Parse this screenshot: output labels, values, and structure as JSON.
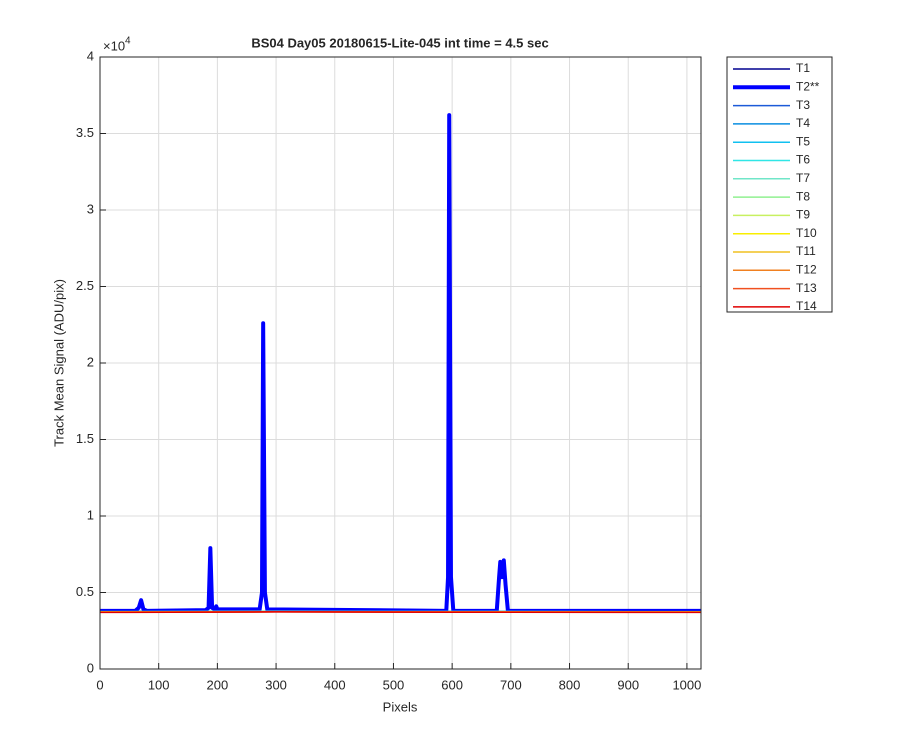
{
  "chart_data": {
    "type": "line",
    "title": "BS04 Day05 20180615-Lite-045 int time = 4.5 sec",
    "xlabel": "Pixels",
    "ylabel": "Track Mean Signal (ADU/pix)",
    "y_multiplier": "×10",
    "y_multiplier_exponent": "4",
    "xlim": [
      0,
      1024
    ],
    "ylim": [
      0,
      4
    ],
    "xticks": [
      0,
      100,
      200,
      300,
      400,
      500,
      600,
      700,
      800,
      900,
      1000
    ],
    "yticks": [
      0,
      0.5,
      1,
      1.5,
      2,
      2.5,
      3,
      3.5,
      4
    ],
    "grid": true,
    "legend": "outside-top-right",
    "series": [
      {
        "name": "T1",
        "color": "#00008f",
        "line_width": 1.5,
        "x": [
          0,
          300,
          600,
          1024
        ],
        "values": [
          0.376,
          0.377,
          0.376,
          0.375
        ]
      },
      {
        "name": "T2**",
        "color": "#0000ff",
        "line_width": 4,
        "x": [
          0,
          60,
          66,
          70,
          74,
          80,
          180,
          185,
          188,
          191,
          196,
          198,
          200,
          272,
          276,
          278,
          281,
          285,
          590,
          593,
          595,
          598,
          602,
          676,
          680,
          682,
          685,
          688,
          691,
          695,
          1024
        ],
        "values": [
          0.38,
          0.38,
          0.4,
          0.45,
          0.39,
          0.38,
          0.385,
          0.4,
          0.79,
          0.4,
          0.39,
          0.41,
          0.39,
          0.39,
          0.5,
          2.26,
          0.5,
          0.39,
          0.38,
          0.6,
          3.62,
          0.6,
          0.38,
          0.38,
          0.6,
          0.7,
          0.6,
          0.71,
          0.55,
          0.38,
          0.38
        ]
      },
      {
        "name": "T3",
        "color": "#1c5ad8",
        "line_width": 1.5,
        "x": [
          0,
          300,
          600,
          1024
        ],
        "values": [
          0.376,
          0.378,
          0.376,
          0.375
        ]
      },
      {
        "name": "T4",
        "color": "#0a8ee0",
        "line_width": 1.5,
        "x": [
          0,
          300,
          600,
          1024
        ],
        "values": [
          0.375,
          0.377,
          0.376,
          0.375
        ]
      },
      {
        "name": "T5",
        "color": "#10c0f0",
        "line_width": 1.5,
        "x": [
          0,
          300,
          600,
          1024
        ],
        "values": [
          0.375,
          0.376,
          0.375,
          0.374
        ]
      },
      {
        "name": "T6",
        "color": "#30e6e6",
        "line_width": 1.5,
        "x": [
          0,
          300,
          600,
          1024
        ],
        "values": [
          0.374,
          0.376,
          0.375,
          0.374
        ]
      },
      {
        "name": "T7",
        "color": "#70e6c8",
        "line_width": 1.5,
        "x": [
          0,
          300,
          600,
          1024
        ],
        "values": [
          0.374,
          0.375,
          0.375,
          0.374
        ]
      },
      {
        "name": "T8",
        "color": "#90f090",
        "line_width": 1.5,
        "x": [
          0,
          300,
          600,
          1024
        ],
        "values": [
          0.374,
          0.375,
          0.374,
          0.373
        ]
      },
      {
        "name": "T9",
        "color": "#c8f060",
        "line_width": 1.5,
        "x": [
          0,
          300,
          600,
          1024
        ],
        "values": [
          0.373,
          0.375,
          0.374,
          0.373
        ]
      },
      {
        "name": "T10",
        "color": "#f8ee00",
        "line_width": 1.5,
        "x": [
          0,
          300,
          600,
          1024
        ],
        "values": [
          0.373,
          0.374,
          0.374,
          0.373
        ]
      },
      {
        "name": "T11",
        "color": "#f0c020",
        "line_width": 1.5,
        "x": [
          0,
          300,
          600,
          1024
        ],
        "values": [
          0.372,
          0.374,
          0.373,
          0.372
        ]
      },
      {
        "name": "T12",
        "color": "#f08020",
        "line_width": 1.5,
        "x": [
          0,
          300,
          600,
          1024
        ],
        "values": [
          0.372,
          0.374,
          0.373,
          0.372
        ]
      },
      {
        "name": "T13",
        "color": "#f05020",
        "line_width": 1.5,
        "x": [
          0,
          300,
          600,
          1024
        ],
        "values": [
          0.371,
          0.373,
          0.372,
          0.371
        ]
      },
      {
        "name": "T14",
        "color": "#e00000",
        "line_width": 1.5,
        "x": [
          0,
          300,
          600,
          1024
        ],
        "values": [
          0.37,
          0.373,
          0.371,
          0.37
        ]
      }
    ]
  }
}
